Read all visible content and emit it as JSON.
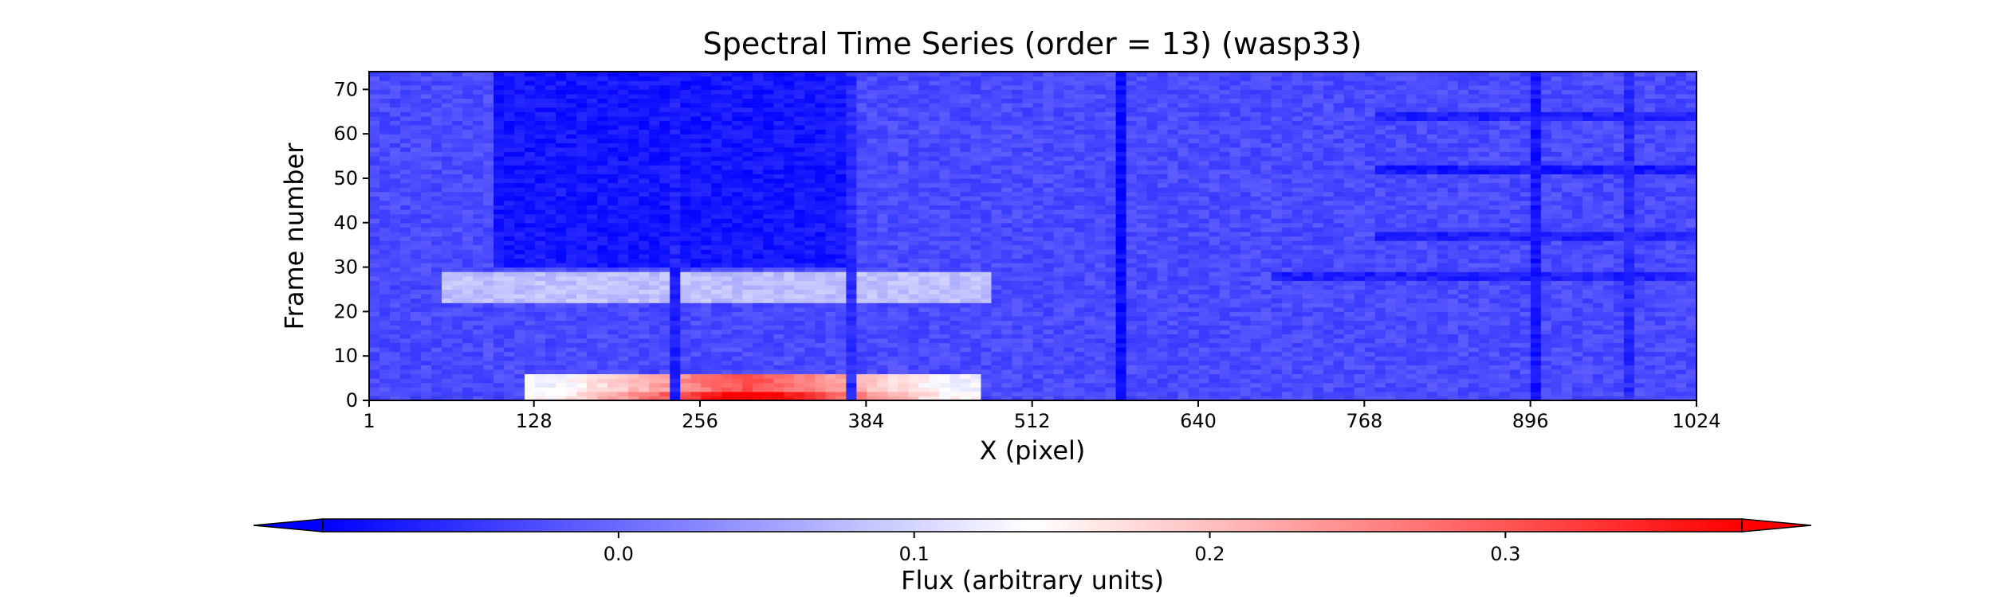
{
  "chart_data": {
    "type": "heatmap",
    "title": "Spectral Time Series (order = 13) (wasp33)",
    "xlabel": "X (pixel)",
    "ylabel": "Frame number",
    "xlim": [
      1,
      1024
    ],
    "ylim": [
      0,
      74
    ],
    "x_ticks": [
      1,
      128,
      256,
      384,
      512,
      640,
      768,
      896,
      1024
    ],
    "y_ticks": [
      0,
      10,
      20,
      30,
      40,
      50,
      60,
      70
    ],
    "grid": false,
    "colormap": "bwr",
    "colorbar": {
      "label": "Flux (arbitrary units)",
      "orientation": "horizontal",
      "placement": "bottom",
      "extend": "both",
      "vmin": -0.1,
      "vmax": 0.38,
      "ticks": [
        0.0,
        0.1,
        0.2,
        0.3
      ],
      "tick_labels": [
        "0.0",
        "0.1",
        "0.2",
        "0.3"
      ]
    },
    "colors": {
      "low": "#0000ff",
      "mid": "#ffffff",
      "high": "#ff0000"
    },
    "features": {
      "background_level": -0.03,
      "high_flux_region": {
        "x_range": [
          120,
          470
        ],
        "frame_range": [
          0,
          6
        ],
        "peak_value": 0.38
      },
      "low_flux_region": {
        "x_range": [
          100,
          380
        ],
        "frame_range": [
          30,
          74
        ],
        "value": -0.08
      },
      "bright_band": {
        "x_range": [
          60,
          480
        ],
        "frame_range": [
          22,
          29
        ],
        "value": 0.08
      },
      "absorption_columns": [
        {
          "x": 234,
          "value": -0.07
        },
        {
          "x": 375,
          "value": -0.06
        },
        {
          "x": 580,
          "value": -0.09
        },
        {
          "x": 900,
          "value": -0.08
        },
        {
          "x": 975,
          "value": -0.06
        }
      ],
      "horizontal_dark_rows": [
        {
          "frame": 28,
          "x_range": [
            700,
            1024
          ],
          "value": -0.07
        },
        {
          "frame": 37,
          "x_range": [
            780,
            1024
          ],
          "value": -0.07
        },
        {
          "frame": 52,
          "x_range": [
            780,
            1024
          ],
          "value": -0.08
        },
        {
          "frame": 64,
          "x_range": [
            780,
            1024
          ],
          "value": -0.07
        }
      ]
    }
  }
}
